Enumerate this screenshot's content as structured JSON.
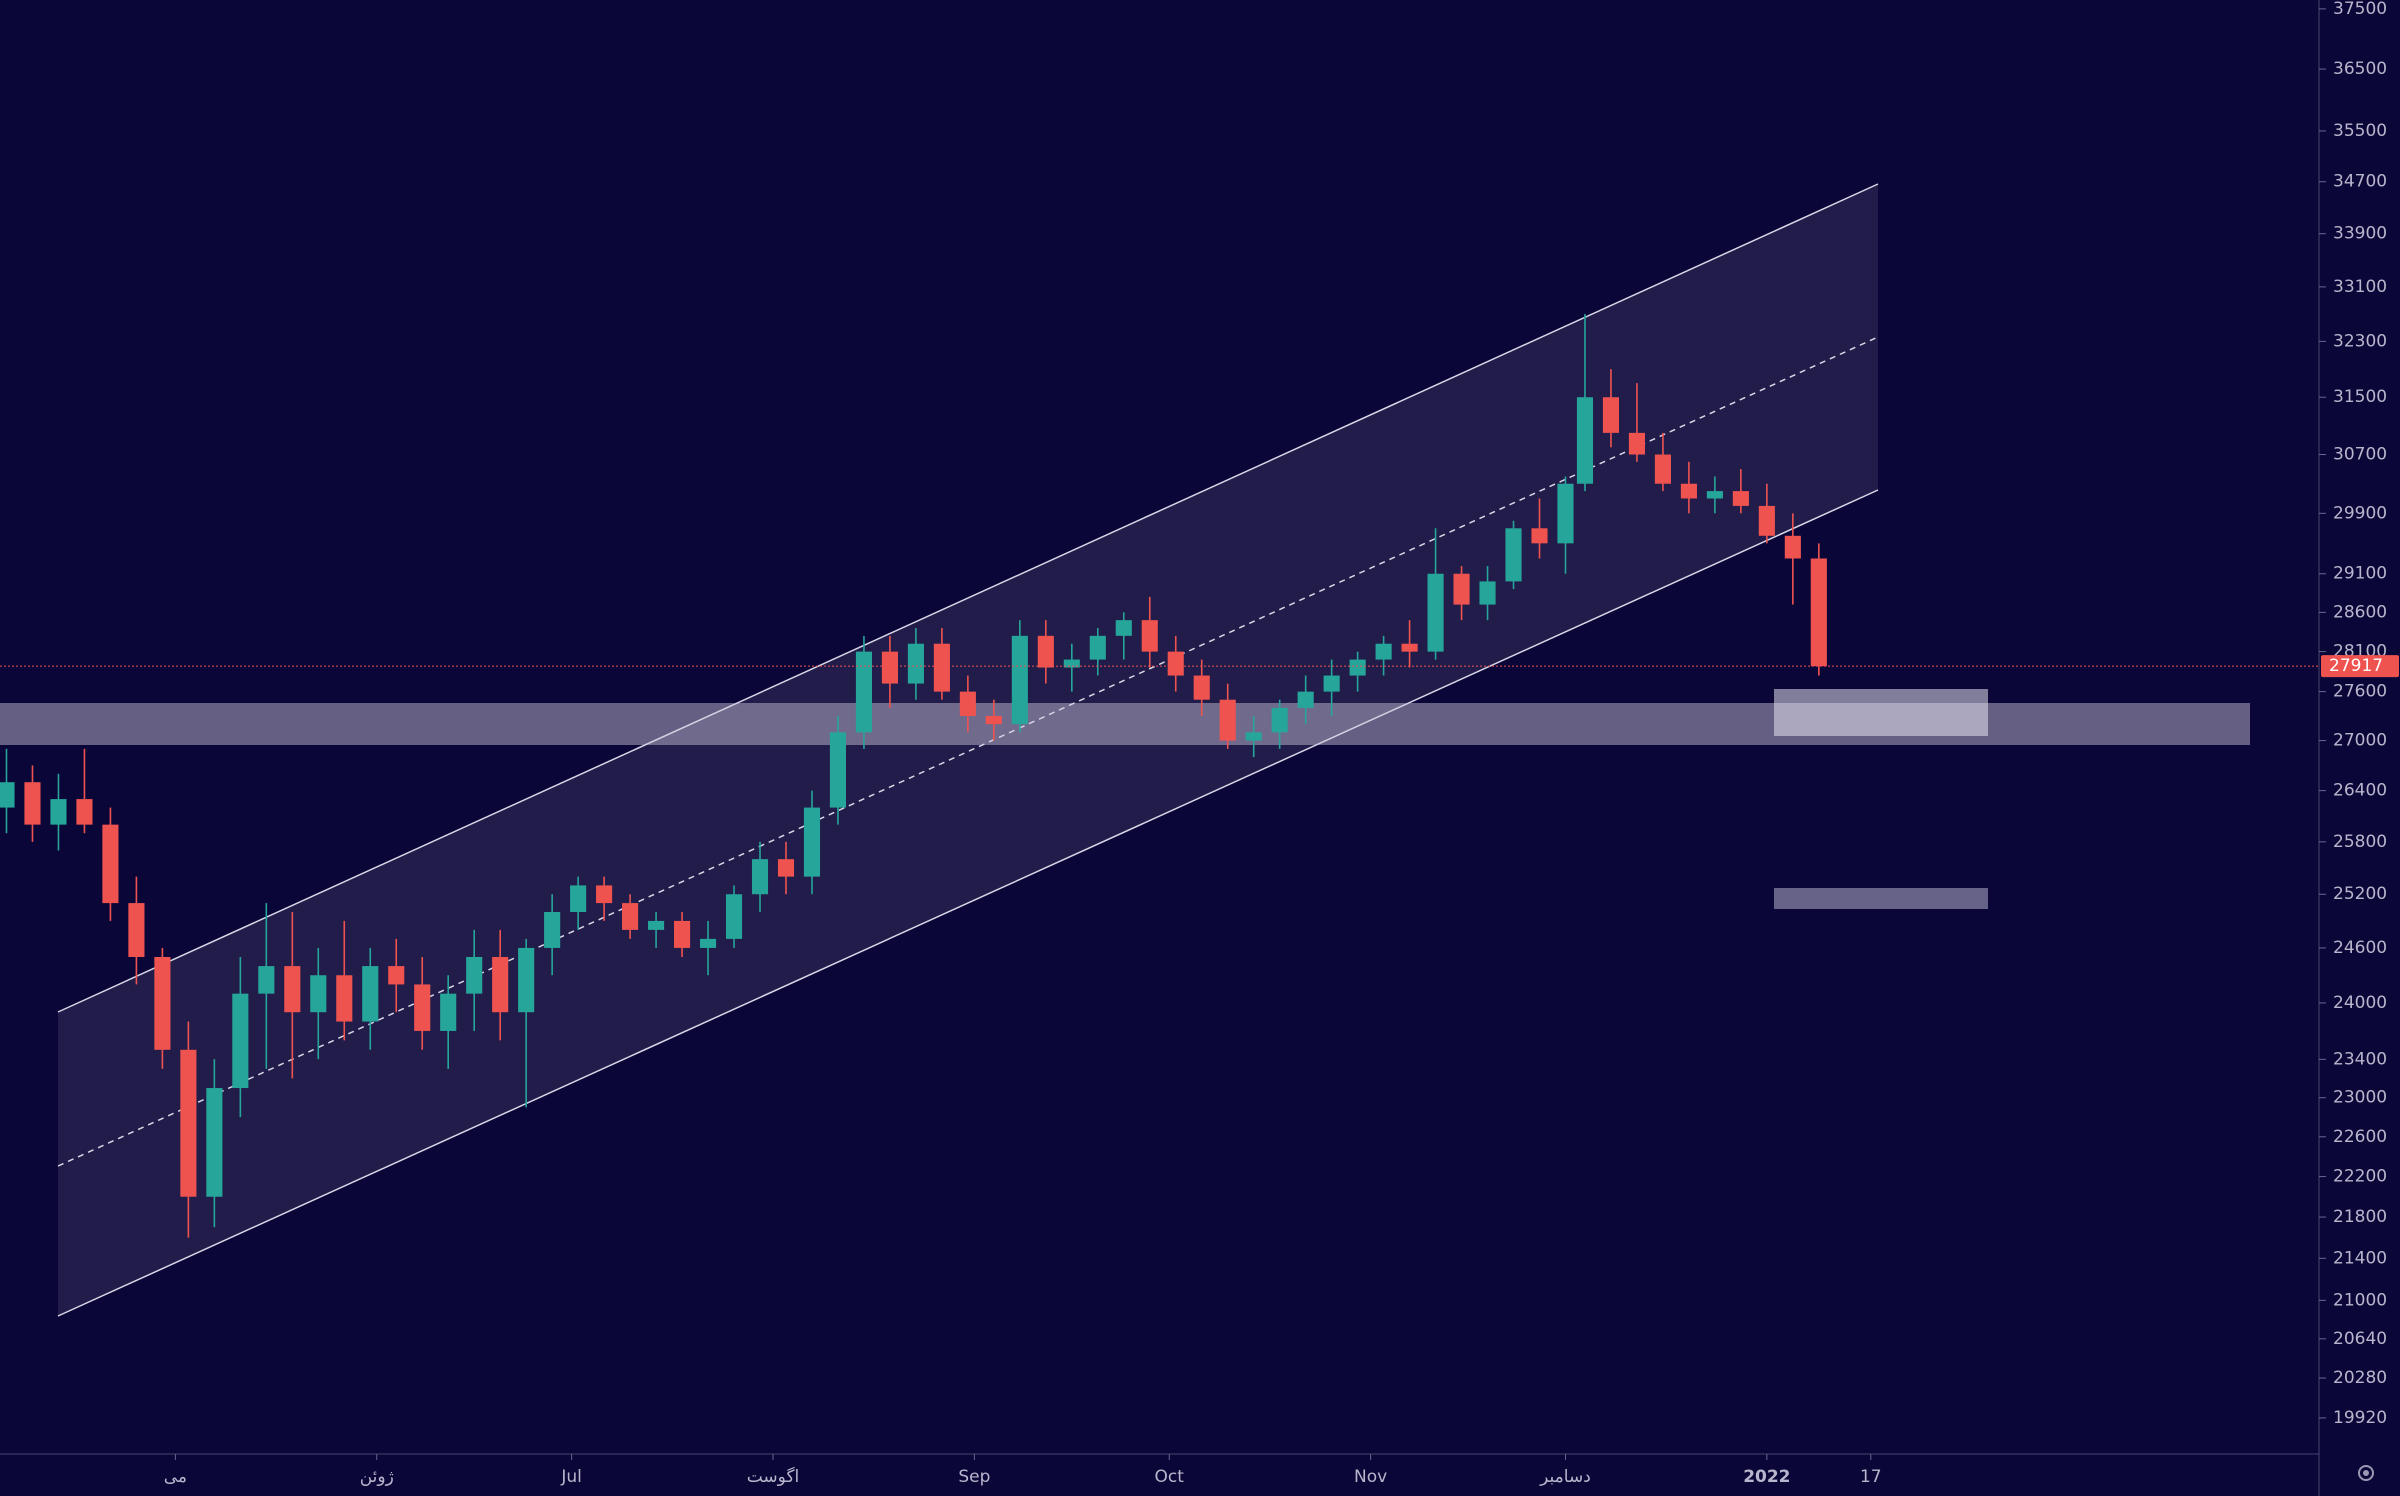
{
  "chart_data": {
    "type": "candlestick",
    "log_scale": true,
    "xlim": [
      -27,
      330
    ],
    "ylim": [
      19600,
      37650
    ],
    "xticks": [
      {
        "value": 0,
        "label": "می"
      },
      {
        "value": 31,
        "label": "ژوئن"
      },
      {
        "value": 61,
        "label": "Jul"
      },
      {
        "value": 92,
        "label": "اگوست"
      },
      {
        "value": 123,
        "label": "Sep"
      },
      {
        "value": 153,
        "label": "Oct"
      },
      {
        "value": 184,
        "label": "Nov"
      },
      {
        "value": 214,
        "label": "دسامبر"
      },
      {
        "value": 245,
        "label": "2022"
      },
      {
        "value": 261,
        "label": "17"
      }
    ],
    "yticks": [
      37500,
      36500,
      35500,
      34700,
      33900,
      33100,
      32300,
      31500,
      30700,
      29900,
      29100,
      28600,
      28100,
      27600,
      27000,
      26400,
      25800,
      25200,
      24600,
      24000,
      23400,
      23000,
      22600,
      22200,
      21800,
      21400,
      21000,
      20640,
      20280,
      19920
    ],
    "up_color": "#26a69a",
    "down_color": "#ef5350",
    "last_price": 27917,
    "x": [
      -26,
      -22,
      -18,
      -14,
      -10,
      -6,
      -2,
      2,
      6,
      10,
      14,
      18,
      22,
      26,
      30,
      34,
      38,
      42,
      46,
      50,
      54,
      58,
      62,
      66,
      70,
      74,
      78,
      82,
      86,
      90,
      94,
      98,
      102,
      106,
      110,
      114,
      118,
      122,
      126,
      130,
      134,
      138,
      142,
      146,
      150,
      154,
      158,
      162,
      166,
      170,
      174,
      178,
      182,
      186,
      190,
      194,
      198,
      202,
      206,
      210,
      214,
      217,
      221,
      225,
      229,
      233,
      237,
      241,
      245,
      249,
      253
    ],
    "open": [
      26200,
      26500,
      26000,
      26300,
      26000,
      25100,
      24500,
      23500,
      22000,
      23100,
      24100,
      24400,
      23900,
      24300,
      23800,
      24400,
      24200,
      23700,
      24100,
      24500,
      23900,
      24600,
      25000,
      25300,
      25100,
      24800,
      24900,
      24600,
      24700,
      25200,
      25600,
      25400,
      26200,
      27100,
      28100,
      27700,
      28200,
      27600,
      27300,
      27200,
      28300,
      27900,
      28000,
      28300,
      28500,
      28100,
      27800,
      27500,
      27000,
      27100,
      27400,
      27600,
      27800,
      28000,
      28200,
      28100,
      29100,
      28700,
      29000,
      29700,
      29500,
      30300,
      31500,
      31000,
      30700,
      30300,
      30100,
      30200,
      30000,
      29600,
      29300
    ],
    "high": [
      26900,
      26700,
      26600,
      26900,
      26200,
      25400,
      24600,
      23800,
      23400,
      24500,
      25100,
      25000,
      24600,
      24900,
      24600,
      24700,
      24500,
      24300,
      24800,
      24800,
      24700,
      25200,
      25400,
      25400,
      25200,
      25000,
      25000,
      24900,
      25300,
      25800,
      25800,
      26400,
      27300,
      28300,
      28300,
      28400,
      28400,
      27800,
      27500,
      28500,
      28500,
      28200,
      28400,
      28600,
      28800,
      28300,
      28000,
      27700,
      27300,
      27500,
      27800,
      28000,
      28100,
      28300,
      28500,
      29700,
      29200,
      29200,
      29800,
      30100,
      30400,
      32700,
      31900,
      31700,
      31000,
      30600,
      30400,
      30500,
      30300,
      29900,
      29500
    ],
    "low": [
      25900,
      25800,
      25700,
      25900,
      24900,
      24200,
      23300,
      21600,
      21700,
      22800,
      23300,
      23200,
      23400,
      23600,
      23500,
      23900,
      23500,
      23300,
      23700,
      23600,
      22900,
      24300,
      24800,
      24900,
      24700,
      24600,
      24500,
      24300,
      24600,
      25000,
      25200,
      25200,
      26000,
      26900,
      27400,
      27500,
      27500,
      27100,
      27000,
      27100,
      27700,
      27600,
      27800,
      28000,
      27900,
      27600,
      27300,
      26900,
      26800,
      26900,
      27200,
      27300,
      27600,
      27800,
      27900,
      28000,
      28500,
      28500,
      28900,
      29300,
      29100,
      30200,
      30800,
      30600,
      30200,
      29900,
      29900,
      29900,
      29500,
      28700,
      27800
    ],
    "close": [
      26500,
      26000,
      26300,
      26000,
      25100,
      24500,
      23500,
      22000,
      23100,
      24100,
      24400,
      23900,
      24300,
      23800,
      24400,
      24200,
      23700,
      24100,
      24500,
      23900,
      24600,
      25000,
      25300,
      25100,
      24800,
      24900,
      24600,
      24700,
      25200,
      25600,
      25400,
      26200,
      27100,
      28100,
      27700,
      28200,
      27600,
      27300,
      27200,
      28300,
      27900,
      28000,
      28300,
      28500,
      28100,
      27800,
      27500,
      27000,
      27100,
      27400,
      27600,
      27800,
      28000,
      28200,
      28100,
      29100,
      28700,
      29000,
      29700,
      29500,
      30300,
      31500,
      31000,
      30700,
      30300,
      30100,
      30200,
      30000,
      29600,
      29300,
      27917
    ]
  }
}
